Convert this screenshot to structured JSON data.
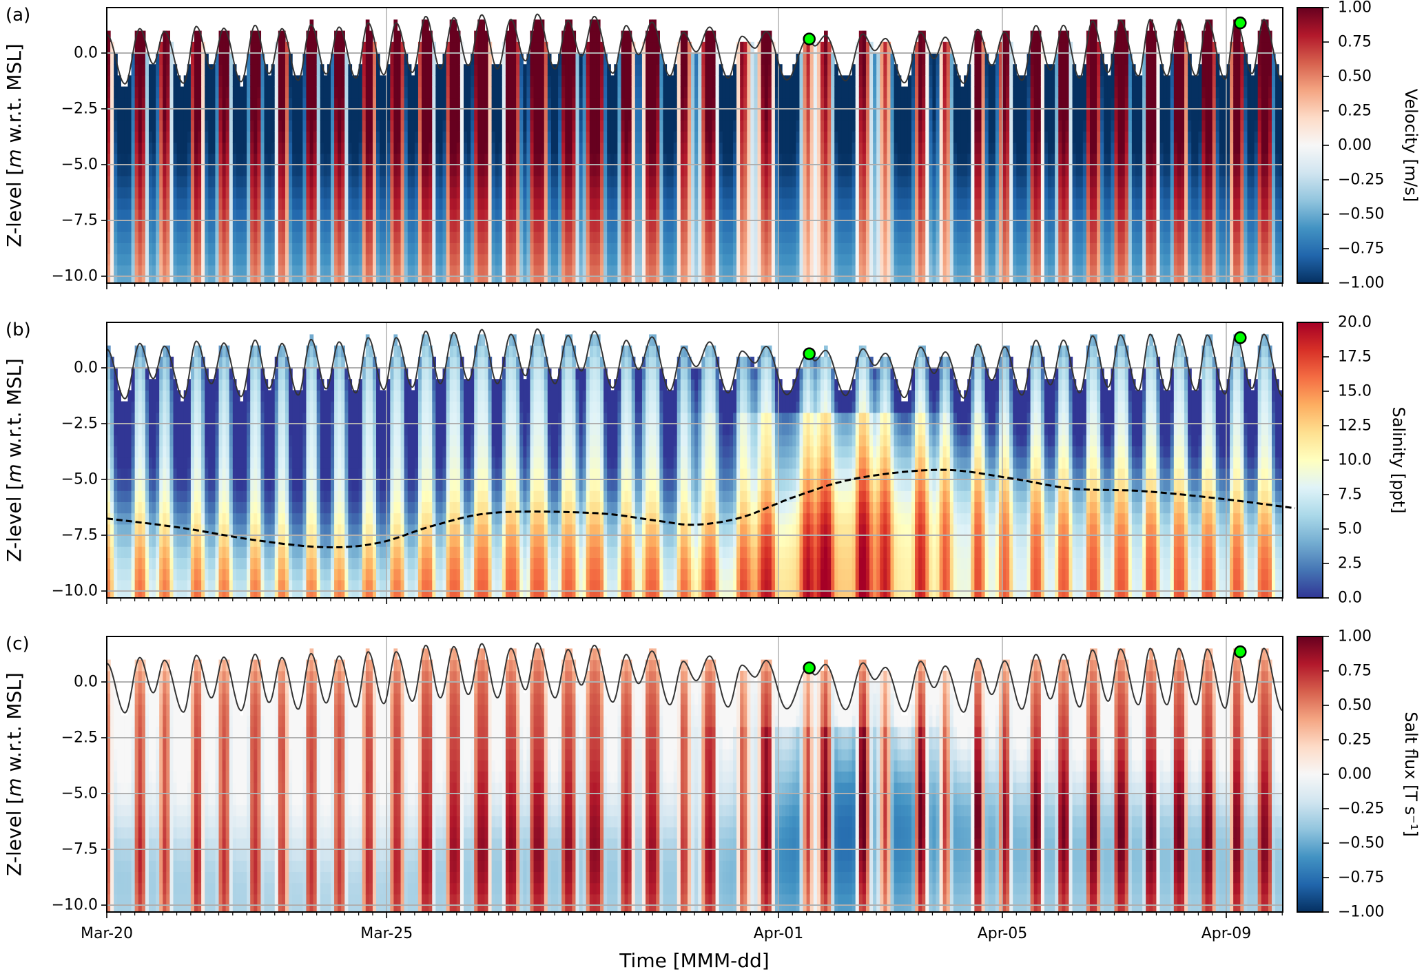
{
  "chart_data": {
    "type": "heatmap",
    "xlabel": "Time [MMM-dd]",
    "xlim": [
      "03-20 00:00",
      "04-10 00:00"
    ],
    "x_ticks": [
      {
        "label": "Mar-20",
        "time": "03-20 00:00"
      },
      {
        "label": "Mar-25",
        "time": "03-25 00:00"
      },
      {
        "label": "Apr-01",
        "time": "04-01 00:00"
      },
      {
        "label": "Apr-05",
        "time": "04-05 00:00"
      },
      {
        "label": "Apr-09",
        "time": "04-09 00:00"
      }
    ],
    "minor_tick_interval_hours": 6,
    "grid": true,
    "ylabel": {
      "prefix": "Z-level [",
      "italic": "m",
      "suffix": " w.r.t. MSL]"
    },
    "ylim": [
      -10.3,
      2.05
    ],
    "y_ticks": [
      {
        "value": 0,
        "label": "0.0"
      },
      {
        "value": -2.5,
        "label": "−2.5"
      },
      {
        "value": -5,
        "label": "−5.0"
      },
      {
        "value": -7.5,
        "label": "−7.5"
      },
      {
        "value": -10,
        "label": "−10.0"
      }
    ],
    "panels": [
      {
        "label": "(a)",
        "variable": "velocity",
        "colorbar": {
          "label": "Velocity [m/s]",
          "range": [
            -1,
            1
          ],
          "colormap": "RdBu_r",
          "stops": [
            "#053061",
            "#2166ac",
            "#4393c3",
            "#92c5de",
            "#d1e5f0",
            "#f7f7f7",
            "#fddbc7",
            "#f4a582",
            "#d6604d",
            "#b2182b",
            "#67001f"
          ],
          "ticks": [
            {
              "value": 1,
              "label": "1.00"
            },
            {
              "value": 0.75,
              "label": "0.75"
            },
            {
              "value": 0.5,
              "label": "0.50"
            },
            {
              "value": 0.25,
              "label": "0.25"
            },
            {
              "value": 0,
              "label": "0.00"
            },
            {
              "value": -0.25,
              "label": "−0.25"
            },
            {
              "value": -0.5,
              "label": "−0.50"
            },
            {
              "value": -0.75,
              "label": "−0.75"
            },
            {
              "value": -1,
              "label": "−1.00"
            }
          ]
        }
      },
      {
        "label": "(b)",
        "variable": "salinity",
        "colorbar": {
          "label": "Salinity [ppt]",
          "range": [
            0,
            20
          ],
          "colormap": "RdYlBu_r",
          "stops": [
            "#313695",
            "#4575b4",
            "#74add1",
            "#abd9e9",
            "#e0f3f8",
            "#ffffbf",
            "#fee090",
            "#fdae61",
            "#f46d43",
            "#d73027",
            "#a50026"
          ],
          "ticks": [
            {
              "value": 20,
              "label": "20.0"
            },
            {
              "value": 17.5,
              "label": "17.5"
            },
            {
              "value": 15,
              "label": "15.0"
            },
            {
              "value": 12.5,
              "label": "12.5"
            },
            {
              "value": 10,
              "label": "10.0"
            },
            {
              "value": 7.5,
              "label": "7.5"
            },
            {
              "value": 5,
              "label": "5.0"
            },
            {
              "value": 2.5,
              "label": "2.5"
            },
            {
              "value": 0,
              "label": "0.0"
            }
          ]
        },
        "dashed_line": [
          {
            "time": "03-20 00:00",
            "z": -6.75
          },
          {
            "time": "03-21 07:26",
            "z": -7.16
          },
          {
            "time": "03-22 16:19",
            "z": -7.73
          },
          {
            "time": "03-23 22:05",
            "z": -8.04
          },
          {
            "time": "03-24 21:07",
            "z": -7.83
          },
          {
            "time": "03-25 20:24",
            "z": -7.06
          },
          {
            "time": "03-26 22:34",
            "z": -6.49
          },
          {
            "time": "03-28 17:31",
            "z": -6.51
          },
          {
            "time": "03-29 19:55",
            "z": -6.85
          },
          {
            "time": "03-30 12:14",
            "z": -7.03
          },
          {
            "time": "03-31 08:10",
            "z": -6.7
          },
          {
            "time": "04-01 07:12",
            "z": -5.77
          },
          {
            "time": "04-02 09:36",
            "z": -4.95
          },
          {
            "time": "04-03 21:50",
            "z": -4.57
          },
          {
            "time": "04-05 03:36",
            "z": -4.95
          },
          {
            "time": "04-06 05:46",
            "z": -5.41
          },
          {
            "time": "04-07 11:31",
            "z": -5.52
          },
          {
            "time": "04-08 20:24",
            "z": -5.85
          },
          {
            "time": "04-10 05:31",
            "z": -6.29
          }
        ]
      },
      {
        "label": "(c)",
        "variable": "salt flux",
        "colorbar": {
          "label": "Salt flux [T s⁻¹]",
          "range": [
            -1,
            1
          ],
          "colormap": "RdBu_r",
          "stops": [
            "#053061",
            "#2166ac",
            "#4393c3",
            "#92c5de",
            "#d1e5f0",
            "#f7f7f7",
            "#fddbc7",
            "#f4a582",
            "#d6604d",
            "#b2182b",
            "#67001f"
          ],
          "ticks": [
            {
              "value": 1,
              "label": "1.00"
            },
            {
              "value": 0.75,
              "label": "0.75"
            },
            {
              "value": 0.5,
              "label": "0.50"
            },
            {
              "value": 0.25,
              "label": "0.25"
            },
            {
              "value": 0,
              "label": "0.00"
            },
            {
              "value": -0.25,
              "label": "−0.25"
            },
            {
              "value": -0.5,
              "label": "−0.50"
            },
            {
              "value": -0.75,
              "label": "−0.75"
            },
            {
              "value": -1,
              "label": "−1.00"
            }
          ]
        }
      }
    ],
    "water_level_color": "#333333",
    "marker_color": "#00ff00",
    "markers": [
      {
        "time": "04-01 13:12",
        "level": 0.63
      },
      {
        "time": "04-09 06:00",
        "level": 1.35
      }
    ],
    "water_level": [
      {
        "time": "03-20 00:00",
        "level": 0.83
      },
      {
        "time": "03-20 07:48",
        "level": -1.38
      },
      {
        "time": "03-20 14:10",
        "level": 1.09
      },
      {
        "time": "03-20 19:55",
        "level": -0.48
      },
      {
        "time": "03-21 00:43",
        "level": 0.97
      },
      {
        "time": "03-21 08:53",
        "level": -1.35
      },
      {
        "time": "03-21 14:24",
        "level": 1.19
      },
      {
        "time": "03-21 20:53",
        "level": -0.71
      },
      {
        "time": "03-22 02:10",
        "level": 1.11
      },
      {
        "time": "03-22 09:36",
        "level": -1.28
      },
      {
        "time": "03-22 15:36",
        "level": 1.24
      },
      {
        "time": "03-22 21:36",
        "level": -0.92
      },
      {
        "time": "03-23 03:07",
        "level": 1.09
      },
      {
        "time": "03-23 10:05",
        "level": -1.22
      },
      {
        "time": "03-23 15:36",
        "level": 1.27
      },
      {
        "time": "03-23 22:05",
        "level": -0.94
      },
      {
        "time": "03-24 03:36",
        "level": 1.16
      },
      {
        "time": "03-24 10:48",
        "level": -1.12
      },
      {
        "time": "03-24 16:05",
        "level": 1.35
      },
      {
        "time": "03-24 22:48",
        "level": -0.97
      },
      {
        "time": "03-25 04:05",
        "level": 1.35
      },
      {
        "time": "03-25 11:02",
        "level": -0.86
      },
      {
        "time": "03-25 16:48",
        "level": 1.64
      },
      {
        "time": "03-25 23:02",
        "level": -0.71
      },
      {
        "time": "03-26 04:48",
        "level": 1.58
      },
      {
        "time": "03-26 11:02",
        "level": -0.56
      },
      {
        "time": "03-26 16:48",
        "level": 1.71
      },
      {
        "time": "03-26 23:31",
        "level": -0.71
      },
      {
        "time": "03-27 05:17",
        "level": 1.5
      },
      {
        "time": "03-27 11:31",
        "level": -0.35
      },
      {
        "time": "03-27 16:34",
        "level": 1.74
      },
      {
        "time": "03-28 00:14",
        "level": -0.71
      },
      {
        "time": "03-28 05:46",
        "level": 1.45
      },
      {
        "time": "03-28 11:31",
        "level": -0.14
      },
      {
        "time": "03-28 17:02",
        "level": 1.64
      },
      {
        "time": "03-29 00:58",
        "level": -0.9
      },
      {
        "time": "03-29 06:43",
        "level": 1.23
      },
      {
        "time": "03-29 12:00",
        "level": -0.07
      },
      {
        "time": "03-29 17:46",
        "level": 1.38
      },
      {
        "time": "03-30 01:26",
        "level": -1.02
      },
      {
        "time": "03-30 07:12",
        "level": 0.92
      },
      {
        "time": "03-30 12:43",
        "level": 0.06
      },
      {
        "time": "03-30 18:29",
        "level": 1.16
      },
      {
        "time": "03-31 02:24",
        "level": -1.12
      },
      {
        "time": "03-31 08:24",
        "level": 0.75
      },
      {
        "time": "03-31 13:55",
        "level": 0.22
      },
      {
        "time": "03-31 18:43",
        "level": 0.96
      },
      {
        "time": "04-01 03:36",
        "level": -1.2
      },
      {
        "time": "04-01 12:43",
        "level": 0.66
      },
      {
        "time": "04-01 15:36",
        "level": 0.32
      },
      {
        "time": "04-01 20:10",
        "level": 0.78
      },
      {
        "time": "04-02 04:48",
        "level": -1.24
      },
      {
        "time": "04-02 12:14",
        "level": 0.85
      },
      {
        "time": "04-02 17:17",
        "level": 0.11
      },
      {
        "time": "04-02 21:50",
        "level": 0.65
      },
      {
        "time": "04-03 06:00",
        "level": -1.33
      },
      {
        "time": "04-03 12:58",
        "level": 0.92
      },
      {
        "time": "04-03 18:43",
        "level": -0.25
      },
      {
        "time": "04-03 23:31",
        "level": 0.71
      },
      {
        "time": "04-04 07:26",
        "level": -1.35
      },
      {
        "time": "04-04 13:26",
        "level": 1.06
      },
      {
        "time": "04-04 19:26",
        "level": -0.56
      },
      {
        "time": "04-05 00:58",
        "level": 0.94
      },
      {
        "time": "04-05 08:24",
        "level": -1.22
      },
      {
        "time": "04-05 14:24",
        "level": 1.23
      },
      {
        "time": "04-05 20:38",
        "level": -0.76
      },
      {
        "time": "04-06 02:10",
        "level": 1.24
      },
      {
        "time": "04-06 09:07",
        "level": -1.12
      },
      {
        "time": "04-06 14:38",
        "level": 1.43
      },
      {
        "time": "04-06 21:22",
        "level": -0.86
      },
      {
        "time": "04-07 02:38",
        "level": 1.47
      },
      {
        "time": "04-07 10:19",
        "level": -1.02
      },
      {
        "time": "04-07 15:22",
        "level": 1.5
      },
      {
        "time": "04-07 22:34",
        "level": -1.02
      },
      {
        "time": "04-08 03:36",
        "level": 1.5
      },
      {
        "time": "04-08 11:02",
        "level": -1.02
      },
      {
        "time": "04-08 15:50",
        "level": 1.47
      },
      {
        "time": "04-08 23:31",
        "level": -1.17
      },
      {
        "time": "04-09 04:05",
        "level": 1.47
      },
      {
        "time": "04-09 11:02",
        "level": -0.92
      },
      {
        "time": "04-09 16:05",
        "level": 1.5
      },
      {
        "time": "04-10 00:14",
        "level": -1.28
      }
    ]
  }
}
